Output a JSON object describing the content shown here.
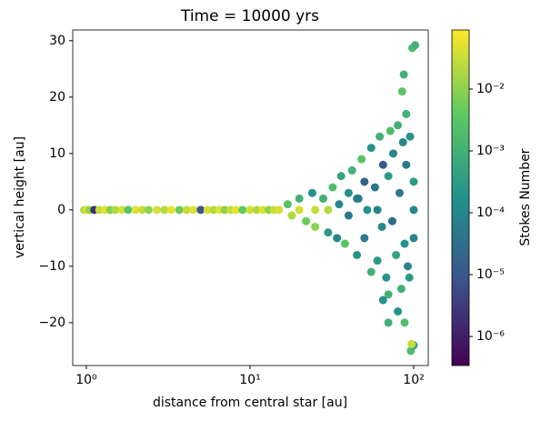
{
  "chart_data": {
    "type": "scatter",
    "title": "Time = 10000 yrs",
    "x_label": "distance from central star [au]",
    "y_label": "vertical height [au]",
    "colorbar_label": "Stokes Number",
    "colormap": "viridis",
    "xscale": "log",
    "clim_scale": "log",
    "xlim": [
      0.826,
      122.7
    ],
    "ylim": [
      -27.6,
      31.9
    ],
    "clim": [
      3.4e-07,
      0.09
    ],
    "xticks": [
      {
        "value": 1,
        "label": "10⁰"
      },
      {
        "value": 10,
        "label": "10¹"
      },
      {
        "value": 100,
        "label": "10²"
      }
    ],
    "yticks": [
      {
        "value": -20,
        "label": "−20"
      },
      {
        "value": -10,
        "label": "−10"
      },
      0,
      10,
      20,
      30
    ],
    "cticks": [
      {
        "value": 1e-06,
        "label": "10⁻⁶"
      },
      {
        "value": 1e-05,
        "label": "10⁻⁵"
      },
      {
        "value": 0.0001,
        "label": "10⁻⁴"
      },
      {
        "value": 0.001,
        "label": "10⁻³"
      },
      {
        "value": 0.01,
        "label": "10⁻²"
      }
    ],
    "x": [
      0.97,
      1.0,
      1.05,
      1.12,
      1.2,
      1.3,
      1.4,
      1.5,
      1.65,
      1.8,
      2.0,
      2.2,
      2.4,
      2.7,
      3.0,
      3.3,
      3.7,
      4.1,
      4.5,
      5.0,
      5.5,
      6.0,
      6.5,
      7.0,
      7.6,
      8.2,
      9,
      10,
      11,
      12,
      13,
      14,
      15,
      17,
      18,
      20,
      22,
      24,
      25,
      28,
      30,
      32,
      34,
      36,
      38,
      40,
      40,
      42,
      45,
      46,
      48,
      50,
      52,
      55,
      55,
      58,
      60,
      62,
      64,
      65,
      68,
      70,
      70,
      72,
      74,
      75,
      78,
      80,
      80,
      82,
      84,
      85,
      86,
      88,
      88,
      90,
      90,
      92,
      94,
      95,
      96,
      98,
      102,
      100,
      97,
      87,
      60,
      50,
      45,
      35,
      30,
      25,
      20,
      100,
      100,
      100,
      70,
      65
    ],
    "y": [
      0,
      0,
      0,
      0,
      0,
      0,
      0,
      0,
      0,
      0,
      0,
      0,
      0,
      0,
      0,
      0,
      0,
      0,
      0,
      0,
      0,
      0,
      0,
      0,
      0,
      0,
      0,
      0,
      0,
      0,
      0,
      0,
      0,
      1,
      -1,
      2,
      -2,
      3,
      -3,
      2,
      -4,
      4,
      -5,
      6,
      -6,
      3,
      -1,
      7,
      -8,
      2,
      9,
      -5,
      0,
      -11,
      11,
      4,
      -9,
      13,
      -3,
      8,
      -12,
      6,
      -15,
      14,
      -2,
      10,
      -8,
      15,
      -18,
      3,
      -14,
      21,
      12,
      -6,
      -20,
      8,
      17,
      -10,
      -12,
      13,
      -25,
      28.7,
      29.2,
      -24,
      -23.8,
      24,
      0,
      5,
      2,
      1,
      0,
      0,
      0,
      0,
      5,
      -5,
      -20,
      -16
    ],
    "c": [
      0.02,
      0.04,
      0.01,
      2e-06,
      0.03,
      0.05,
      0.008,
      0.02,
      0.04,
      0.003,
      0.05,
      0.03,
      0.01,
      0.04,
      0.02,
      0.06,
      0.005,
      0.03,
      0.05,
      1e-05,
      0.04,
      0.02,
      0.05,
      0.01,
      0.03,
      0.06,
      0.004,
      0.04,
      0.02,
      0.05,
      0.01,
      0.03,
      0.04,
      0.003,
      0.02,
      0.001,
      0.005,
      0.0002,
      0.01,
      0.001,
      0.0003,
      0.002,
      0.0001,
      0.0005,
      0.003,
      0.0002,
      5e-05,
      0.001,
      0.0002,
      0.0001,
      0.003,
      5e-05,
      0.0002,
      0.001,
      0.0002,
      5e-05,
      0.0003,
      0.001,
      0.0001,
      1e-05,
      0.0002,
      0.0003,
      0.001,
      0.002,
      3e-05,
      0.0001,
      0.0005,
      0.001,
      0.0002,
      5e-05,
      0.001,
      0.003,
      0.0001,
      0.0002,
      0.002,
      5e-05,
      0.001,
      0.0001,
      0.0003,
      0.0002,
      0.002,
      0.002,
      0.001,
      0.0005,
      0.03,
      0.001,
      0.0001,
      2e-05,
      5e-05,
      0.0001,
      0.02,
      0.03,
      0.04,
      0.0001,
      0.0003,
      0.0001,
      0.001,
      0.0002
    ]
  }
}
